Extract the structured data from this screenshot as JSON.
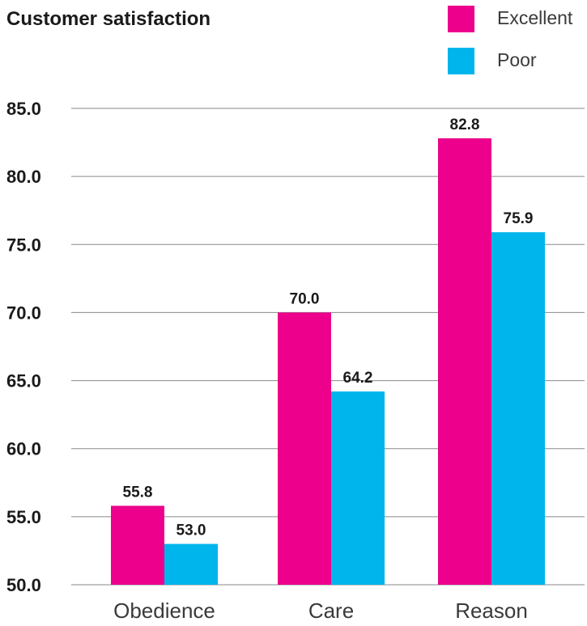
{
  "chart_data": {
    "type": "bar",
    "title": "Customer satisfaction",
    "categories": [
      "Obedience",
      "Care",
      "Reason"
    ],
    "series": [
      {
        "name": "Excellent",
        "color": "#ec008c",
        "values": [
          55.8,
          70.0,
          82.8
        ],
        "labels": [
          "55.8",
          "70.0",
          "82.8"
        ]
      },
      {
        "name": "Poor",
        "color": "#00b5ec",
        "values": [
          53.0,
          64.2,
          75.9
        ],
        "labels": [
          "53.0",
          "64.2",
          "75.9"
        ]
      }
    ],
    "y_ticks": [
      "50.0",
      "55.0",
      "60.0",
      "65.0",
      "70.0",
      "75.0",
      "80.0",
      "85.0"
    ],
    "ylim": [
      50,
      85
    ],
    "grid": true,
    "legend_position": "top-right",
    "xlabel": "",
    "ylabel": ""
  }
}
